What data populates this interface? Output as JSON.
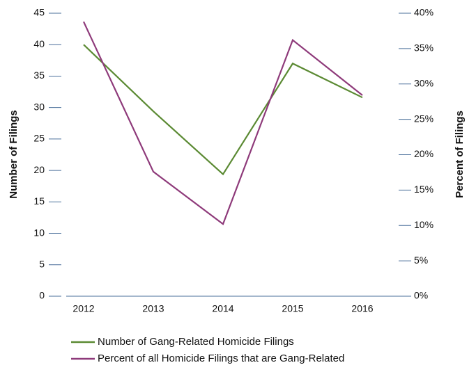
{
  "chart_data": {
    "type": "line",
    "categories": [
      "2012",
      "2013",
      "2014",
      "2015",
      "2016"
    ],
    "y_label": "Number of Filings",
    "y2_label": "Percent of Filings",
    "ylim": [
      0,
      45
    ],
    "yticks": [
      0,
      5,
      10,
      15,
      20,
      25,
      30,
      35,
      40,
      45
    ],
    "y2lim": [
      0,
      40
    ],
    "y2ticks": [
      {
        "value": 0,
        "label": "0%"
      },
      {
        "value": 5,
        "label": "5%"
      },
      {
        "value": 10,
        "label": "10%"
      },
      {
        "value": 15,
        "label": "15%"
      },
      {
        "value": 20,
        "label": "20%"
      },
      {
        "value": 25,
        "label": "25%"
      },
      {
        "value": 30,
        "label": "30%"
      },
      {
        "value": 35,
        "label": "35%"
      },
      {
        "value": 40,
        "label": "40%"
      }
    ],
    "series": [
      {
        "name": "Number of Gang-Related Homicide Filings",
        "color": "#5b8a33",
        "values": [
          40,
          29.4,
          19.4,
          37,
          31.6
        ]
      },
      {
        "name": "Percent of all Homicide Filings that are Gang-Related",
        "color": "#8e3a7a",
        "axis": "y2",
        "values": [
          38.8,
          17.6,
          10.2,
          36.2,
          28.4
        ]
      }
    ]
  }
}
